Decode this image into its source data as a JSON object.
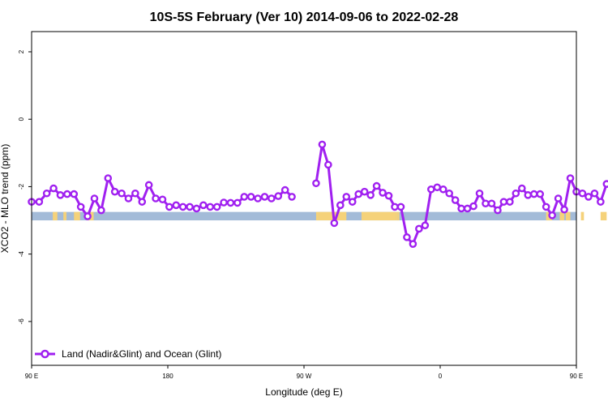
{
  "chart_data": {
    "type": "line",
    "title": "10S-5S February (Ver 10)   2014-09-06 to 2022-02-28",
    "xlabel": "Longitude (deg E)",
    "ylabel": "XCO2 - MLO trend (ppm)",
    "xlim": [
      90,
      450
    ],
    "ylim": [
      -7.3,
      2.6
    ],
    "xticks": [
      {
        "value": 90,
        "label": "90 E"
      },
      {
        "value": 180,
        "label": "180"
      },
      {
        "value": 270,
        "label": "90 W"
      },
      {
        "value": 360,
        "label": "0"
      },
      {
        "value": 450,
        "label": "90 E"
      },
      {
        "value": 540,
        "label": "180"
      }
    ],
    "yticks": [
      {
        "value": 2,
        "label": "2"
      },
      {
        "value": 0,
        "label": "0"
      },
      {
        "value": -2,
        "label": "-2"
      },
      {
        "value": -4,
        "label": "-4"
      },
      {
        "value": -6,
        "label": "-6"
      }
    ],
    "grid": false,
    "legend_position": "bottom-left",
    "land_band_y": [
      -3.0,
      -2.75
    ],
    "land_band_colors": {
      "ocean": "#a3bbd8",
      "land": "#f5d27a"
    },
    "land_segments": [
      [
        104,
        107
      ],
      [
        111,
        113
      ],
      [
        118,
        122
      ],
      [
        127,
        131
      ],
      [
        278,
        280
      ],
      [
        280,
        298
      ],
      [
        308,
        331
      ],
      [
        333,
        332
      ],
      [
        331,
        332
      ],
      [
        430,
        432
      ],
      [
        432,
        434
      ],
      [
        439,
        442
      ],
      [
        443,
        446
      ],
      [
        453,
        455
      ],
      [
        466,
        470
      ]
    ],
    "series": [
      {
        "name": "Land (Nadir&Glint) and Ocean (Glint)",
        "color": "#a020f0",
        "segments": [
          [
            [
              90,
              -2.45
            ],
            [
              95,
              -2.45
            ],
            [
              100,
              -2.2
            ],
            [
              104.5,
              -2.05
            ],
            [
              109,
              -2.25
            ],
            [
              113.5,
              -2.22
            ],
            [
              118,
              -2.22
            ],
            [
              122.5,
              -2.6
            ],
            [
              127,
              -2.88
            ],
            [
              131.5,
              -2.35
            ],
            [
              136,
              -2.7
            ],
            [
              140.5,
              -1.75
            ],
            [
              145,
              -2.15
            ],
            [
              149.5,
              -2.2
            ],
            [
              154,
              -2.35
            ],
            [
              158.5,
              -2.2
            ],
            [
              163,
              -2.45
            ],
            [
              167.5,
              -1.95
            ],
            [
              172,
              -2.35
            ],
            [
              176.5,
              -2.38
            ],
            [
              181,
              -2.6
            ],
            [
              185.5,
              -2.55
            ],
            [
              190,
              -2.6
            ],
            [
              194.5,
              -2.6
            ],
            [
              199,
              -2.65
            ],
            [
              203.5,
              -2.55
            ],
            [
              208,
              -2.6
            ],
            [
              212.5,
              -2.6
            ],
            [
              217,
              -2.47
            ],
            [
              221.5,
              -2.48
            ],
            [
              226,
              -2.48
            ],
            [
              230.5,
              -2.3
            ],
            [
              235,
              -2.3
            ],
            [
              239.5,
              -2.35
            ],
            [
              244,
              -2.3
            ],
            [
              248.5,
              -2.35
            ],
            [
              253,
              -2.28
            ],
            [
              257.5,
              -2.1
            ],
            [
              262,
              -2.3
            ]
          ],
          [
            [
              278,
              -1.9
            ],
            [
              282,
              -0.75
            ],
            [
              286,
              -1.35
            ],
            [
              290,
              -3.08
            ],
            [
              294,
              -2.55
            ],
            [
              298,
              -2.3
            ],
            [
              302,
              -2.45
            ],
            [
              306,
              -2.22
            ],
            [
              310,
              -2.15
            ],
            [
              314,
              -2.25
            ],
            [
              318,
              -1.98
            ],
            [
              322,
              -2.18
            ],
            [
              326,
              -2.27
            ],
            [
              330,
              -2.6
            ],
            [
              334,
              -2.6
            ],
            [
              338,
              -3.5
            ],
            [
              342,
              -3.7
            ],
            [
              346,
              -3.25
            ],
            [
              350,
              -3.15
            ],
            [
              354,
              -2.08
            ],
            [
              358,
              -2.02
            ],
            [
              362,
              -2.08
            ],
            [
              366,
              -2.2
            ],
            [
              370,
              -2.4
            ],
            [
              374,
              -2.65
            ],
            [
              378,
              -2.65
            ],
            [
              382,
              -2.58
            ],
            [
              386,
              -2.2
            ],
            [
              390,
              -2.5
            ],
            [
              394,
              -2.5
            ],
            [
              398,
              -2.7
            ],
            [
              402,
              -2.45
            ],
            [
              406,
              -2.45
            ],
            [
              410,
              -2.2
            ],
            [
              414,
              -2.05
            ],
            [
              418,
              -2.25
            ],
            [
              422,
              -2.22
            ],
            [
              426,
              -2.22
            ],
            [
              430,
              -2.6
            ],
            [
              434,
              -2.85
            ],
            [
              438,
              -2.35
            ],
            [
              442,
              -2.68
            ],
            [
              446,
              -1.75
            ],
            [
              450,
              -2.15
            ],
            [
              454,
              -2.2
            ],
            [
              458,
              -2.3
            ],
            [
              462,
              -2.2
            ],
            [
              466,
              -2.45
            ],
            [
              470,
              -1.92
            ]
          ]
        ]
      }
    ]
  }
}
